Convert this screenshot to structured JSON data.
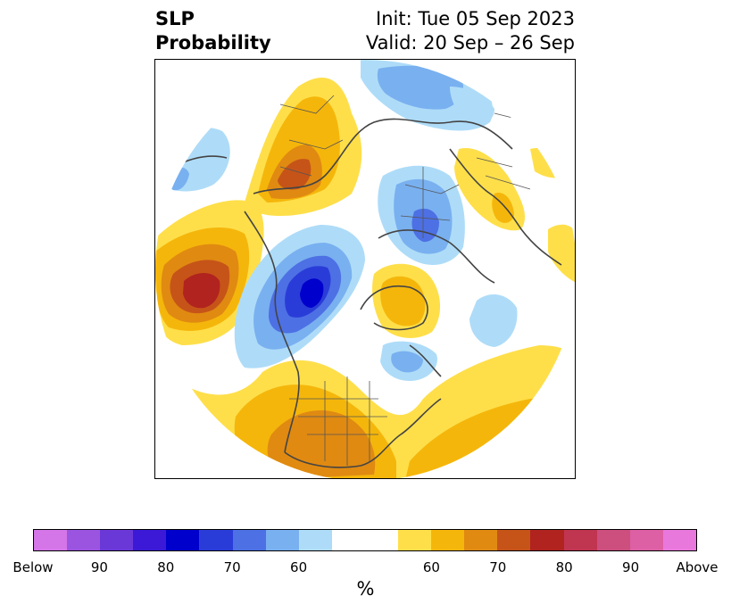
{
  "title": {
    "line1_left": "SLP",
    "line2_left": "Probability",
    "line1_right": "Init: Tue 05 Sep 2023",
    "line2_right": "Valid: 20 Sep – 26 Sep"
  },
  "colorbar": {
    "colors": [
      "#d475e8",
      "#9b54e0",
      "#6b38d8",
      "#3b19d6",
      "#0000cc",
      "#2a3cd8",
      "#4d70e4",
      "#79b0f0",
      "#aedcf8",
      "#ffffff",
      "#ffffff",
      "#fedf4a",
      "#f5b60b",
      "#e08a12",
      "#c65418",
      "#b1231f",
      "#c03550",
      "#cc4f7e",
      "#dd5fa4",
      "#e878dc"
    ],
    "tick_labels": [
      "Below",
      "90",
      "80",
      "70",
      "60",
      "60",
      "70",
      "80",
      "90",
      "Above"
    ],
    "unit_label": "%"
  },
  "legend_colors": {
    "below_light": "#aedcf8",
    "below_mid": "#79b0f0",
    "below_strong": "#4d70e4",
    "below_deep": "#2a3cd8",
    "below_extreme": "#0000cc",
    "above_light": "#fedf4a",
    "above_mid": "#f5b60b",
    "above_strong": "#e08a12",
    "above_deep": "#c65418",
    "above_extreme": "#b1231f"
  }
}
